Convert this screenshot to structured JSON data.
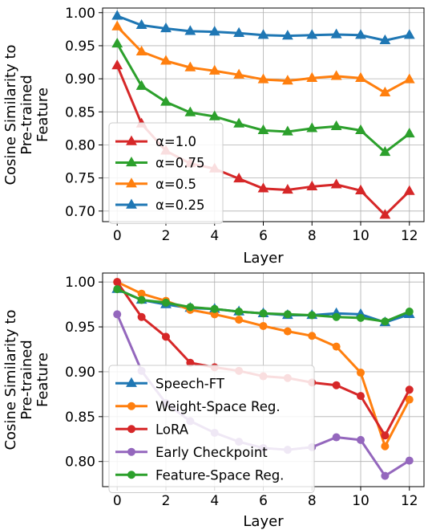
{
  "chart_data": [
    {
      "type": "line",
      "xlabel": "Layer",
      "ylabel_lines": [
        "Cosine Similarity to",
        "Pre-trained",
        "Feature"
      ],
      "xlim": [
        -0.6,
        12.6
      ],
      "ylim": [
        0.684,
        1.007
      ],
      "xticks": [
        0,
        2,
        4,
        6,
        8,
        10,
        12
      ],
      "yticks": [
        0.7,
        0.75,
        0.8,
        0.85,
        0.9,
        0.95,
        1.0
      ],
      "ytick_labels": [
        "0.70",
        "0.75",
        "0.80",
        "0.85",
        "0.90",
        "0.95",
        "1.00"
      ],
      "grid": true,
      "legend_position": "lower-left",
      "x": [
        0,
        1,
        2,
        3,
        4,
        5,
        6,
        7,
        8,
        9,
        10,
        11,
        12
      ],
      "series": [
        {
          "name": "α=1.0",
          "color": "#d62728",
          "marker": "triangle",
          "values": [
            0.92,
            0.832,
            0.791,
            0.772,
            0.764,
            0.749,
            0.734,
            0.732,
            0.737,
            0.74,
            0.731,
            0.694,
            0.73
          ]
        },
        {
          "name": "α=0.75",
          "color": "#2ca02c",
          "marker": "triangle",
          "values": [
            0.953,
            0.889,
            0.865,
            0.849,
            0.843,
            0.832,
            0.822,
            0.82,
            0.825,
            0.828,
            0.822,
            0.789,
            0.817
          ]
        },
        {
          "name": "α=0.5",
          "color": "#ff7f0e",
          "marker": "triangle",
          "values": [
            0.979,
            0.941,
            0.927,
            0.917,
            0.912,
            0.906,
            0.899,
            0.897,
            0.901,
            0.904,
            0.901,
            0.879,
            0.899
          ]
        },
        {
          "name": "α=0.25",
          "color": "#1f77b4",
          "marker": "triangle",
          "values": [
            0.995,
            0.981,
            0.976,
            0.972,
            0.971,
            0.969,
            0.966,
            0.965,
            0.966,
            0.967,
            0.966,
            0.958,
            0.966
          ]
        }
      ]
    },
    {
      "type": "line",
      "xlabel": "Layer",
      "ylabel_lines": [
        "Cosine Similarity to",
        "Pre-trained",
        "Feature"
      ],
      "xlim": [
        -0.6,
        12.6
      ],
      "ylim": [
        0.772,
        1.01
      ],
      "xticks": [
        0,
        2,
        4,
        6,
        8,
        10,
        12
      ],
      "yticks": [
        0.8,
        0.85,
        0.9,
        0.95,
        1.0
      ],
      "ytick_labels": [
        "0.80",
        "0.85",
        "0.90",
        "0.95",
        "1.00"
      ],
      "grid": true,
      "legend_position": "lower-left",
      "x": [
        0,
        1,
        2,
        3,
        4,
        5,
        6,
        7,
        8,
        9,
        10,
        11,
        12
      ],
      "series": [
        {
          "name": "Speech-FT",
          "color": "#1f77b4",
          "marker": "triangle",
          "values": [
            0.992,
            0.98,
            0.975,
            0.971,
            0.97,
            0.967,
            0.965,
            0.963,
            0.963,
            0.965,
            0.964,
            0.955,
            0.964
          ]
        },
        {
          "name": "Weight-Space Reg.",
          "color": "#ff7f0e",
          "marker": "circle",
          "values": [
            1.0,
            0.987,
            0.979,
            0.969,
            0.964,
            0.958,
            0.951,
            0.945,
            0.94,
            0.928,
            0.899,
            0.817,
            0.869
          ]
        },
        {
          "name": "LoRA",
          "color": "#d62728",
          "marker": "circle",
          "values": [
            1.0,
            0.961,
            0.939,
            0.91,
            0.905,
            0.901,
            0.895,
            0.893,
            0.888,
            0.885,
            0.873,
            0.829,
            0.88
          ]
        },
        {
          "name": "Early Checkpoint",
          "color": "#9467bd",
          "marker": "circle",
          "values": [
            0.964,
            0.901,
            0.865,
            0.845,
            0.832,
            0.822,
            0.815,
            0.813,
            0.816,
            0.827,
            0.824,
            0.784,
            0.801
          ]
        },
        {
          "name": "Feature-Space Reg.",
          "color": "#2ca02c",
          "marker": "circle",
          "values": [
            0.992,
            0.98,
            0.977,
            0.972,
            0.97,
            0.967,
            0.965,
            0.964,
            0.963,
            0.961,
            0.96,
            0.956,
            0.967
          ]
        }
      ]
    }
  ]
}
